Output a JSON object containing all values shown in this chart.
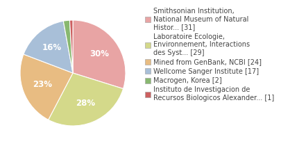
{
  "labels": [
    "Smithsonian Institution,\nNational Museum of Natural\nHistor... [31]",
    "Laboratoire Ecologie,\nEnvironnement, Interactions\ndes Syst... [29]",
    "Mined from GenBank, NCBI [24]",
    "Wellcome Sanger Institute [17]",
    "Macrogen, Korea [2]",
    "Instituto de Investigacion de\nRecursos Biologicos Alexander... [1]"
  ],
  "values": [
    31,
    29,
    24,
    17,
    2,
    1
  ],
  "colors": [
    "#e8a4a4",
    "#d4d98a",
    "#e8bc82",
    "#a8bfd8",
    "#88b870",
    "#cc6060"
  ],
  "startangle": 90,
  "background_color": "#ffffff",
  "text_color": "#444444",
  "font_size": 7.0,
  "pct_font_size": 8.5
}
